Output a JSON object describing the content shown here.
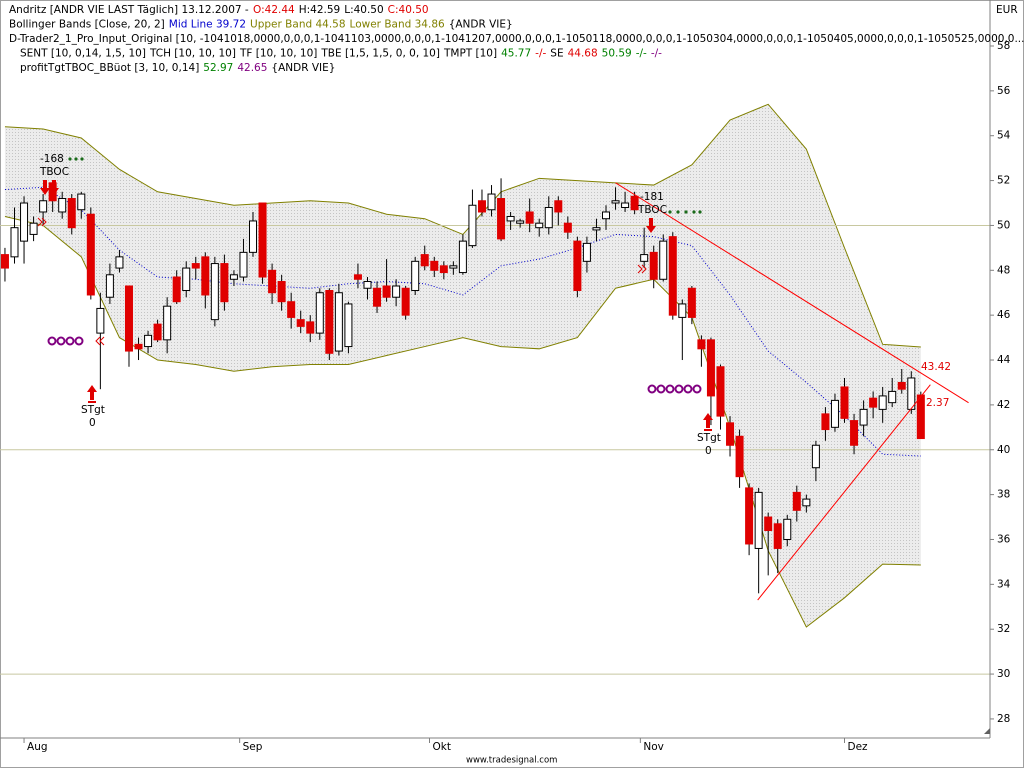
{
  "chart_data": {
    "type": "candlestick",
    "legend_lines": [
      [
        {
          "text": "Andritz [ANDR VIE LAST Täglich] 13.12.2007 -",
          "color": "#000000"
        },
        {
          "text": "O:42.44",
          "color": "#e00000"
        },
        {
          "text": "H:42.59",
          "color": "#000000"
        },
        {
          "text": "L:40.50",
          "color": "#000000"
        },
        {
          "text": "C:40.50",
          "color": "#e00000"
        }
      ],
      [
        {
          "text": "Bollinger Bands [Close, 20, 2]",
          "color": "#000000"
        },
        {
          "text": "Mid Line 39.72",
          "color": "#0000cc"
        },
        {
          "text": "Upper Band 44.58",
          "color": "#808000"
        },
        {
          "text": "Lower Band 34.86",
          "color": "#808000"
        },
        {
          "text": "{ANDR VIE}",
          "color": "#000000"
        }
      ],
      [
        {
          "text": "D-Trader2_1_Pro_Input_Original [10, -1041018,0000,0,0,0,1-1041103,0000,0,0,0,1-1041207,0000,0,0,0,1-1050118,0000,0,0,0,1-1050304,0000,0,0,0,1-1050405,0000,0,0,0,1-1050525,0000,0...",
          "color": "#000000"
        }
      ],
      [
        {
          "text": "SENT [10, 0,14, 1,5, 10]",
          "color": "#000000"
        },
        {
          "text": "TCH [10, 10, 10]",
          "color": "#000000"
        },
        {
          "text": "TF [10, 10, 10]",
          "color": "#000000"
        },
        {
          "text": "TBE [1,5, 1,5, 0, 0, 10]",
          "color": "#000000"
        },
        {
          "text": "TMPT [10]",
          "color": "#000000"
        },
        {
          "text": "45.77",
          "color": "#008000"
        },
        {
          "text": "-/-",
          "color": "#e00000"
        },
        {
          "text": "SE",
          "color": "#000000"
        },
        {
          "text": "44.68",
          "color": "#e00000"
        },
        {
          "text": "50.59",
          "color": "#008000"
        },
        {
          "text": "-/-",
          "color": "#008000"
        },
        {
          "text": "-/-",
          "color": "#800080"
        }
      ],
      [
        {
          "text": "profitTgtTBOC_BBüot [3, 10, 0,14]",
          "color": "#000000"
        },
        {
          "text": "52.97",
          "color": "#008000"
        },
        {
          "text": "42.65",
          "color": "#800080"
        },
        {
          "text": "{ANDR VIE}",
          "color": "#000000"
        }
      ]
    ],
    "open": [
      48.7,
      48.6,
      49.3,
      49.6,
      50.6,
      51.9,
      50.6,
      51.2,
      50.7,
      50.5,
      45.2,
      46.8,
      48.1,
      47.3,
      44.7,
      44.6,
      45.6,
      44.9,
      47.7,
      47.1,
      48.3,
      48.6,
      45.8,
      48.3,
      47.6,
      47.7,
      48.8,
      51,
      48,
      47.5,
      46.6,
      45.8,
      45.7,
      45.2,
      47.1,
      44.4,
      44.6,
      47.8,
      47.2,
      47.2,
      47.3,
      46.8,
      47.2,
      47.1,
      48.7,
      48.4,
      48.2,
      48.1,
      47.9,
      49.1,
      51.1,
      50.7,
      51.2,
      50.2,
      50.1,
      50.6,
      49.9,
      49.9,
      51.1,
      50.1,
      49.3,
      48.4,
      49.8,
      50.3,
      51,
      50.8,
      51.3,
      48.4,
      48.8,
      47.6,
      49.5,
      45.9,
      47.2,
      44.9,
      44.9,
      43.7,
      41.2,
      40.6,
      38.3,
      35.6,
      37,
      36.7,
      36,
      38.1,
      37.5,
      39.2,
      41.6,
      41,
      42.8,
      41.3,
      41.1,
      42.3,
      41.8,
      42.1,
      43,
      41.8,
      42.44
    ],
    "high": [
      49,
      50.8,
      51.3,
      50.4,
      51.4,
      52,
      51.5,
      51.4,
      51.5,
      50.8,
      47,
      48.3,
      48.9,
      47.3,
      45,
      45.3,
      45.8,
      46.8,
      48,
      48.4,
      48.6,
      48.8,
      48.6,
      48.7,
      48,
      49.4,
      50.6,
      51,
      48.3,
      47.8,
      47,
      46.2,
      46,
      47.2,
      47.2,
      47.4,
      46.6,
      48.3,
      47.7,
      47.5,
      48.5,
      47.6,
      47.3,
      48.6,
      49.1,
      48.6,
      48.4,
      48.4,
      49.6,
      51.6,
      51.6,
      51.8,
      52.1,
      50.6,
      50.3,
      51.2,
      50.3,
      51.3,
      51.3,
      50.4,
      49.5,
      49.5,
      50.3,
      50.9,
      51.7,
      51.5,
      51.5,
      49.9,
      49.1,
      49.6,
      49.7,
      46.7,
      47.3,
      45.1,
      45,
      43.8,
      41.5,
      40.9,
      38.5,
      38.3,
      37.2,
      36.9,
      37.1,
      38.4,
      38,
      40.4,
      41.9,
      42.5,
      43.2,
      41.6,
      42.2,
      42.6,
      42.8,
      43.2,
      43.6,
      43.5,
      42.59
    ],
    "low": [
      47.5,
      48.3,
      48.3,
      49.3,
      50,
      50.6,
      50.3,
      49.6,
      50.3,
      46.7,
      42.7,
      46.5,
      47.9,
      43.7,
      44,
      44.3,
      44.8,
      44.3,
      46.5,
      46.8,
      47.6,
      46.3,
      45.5,
      46.2,
      47.3,
      47.5,
      48.6,
      47.4,
      46.5,
      46.2,
      45.4,
      45.2,
      44.8,
      44.9,
      44,
      44.2,
      44.3,
      47.2,
      46.7,
      46.1,
      46.6,
      46.4,
      45.8,
      46.9,
      48,
      47.7,
      47.6,
      47.8,
      47.8,
      49,
      50.4,
      50.4,
      49.3,
      49.8,
      49.9,
      49.7,
      49.5,
      49.6,
      50,
      49.4,
      46.8,
      47.9,
      49.3,
      49.8,
      50.7,
      50.6,
      50.5,
      48.1,
      47.2,
      47.5,
      45.8,
      44,
      45.6,
      43.7,
      41.1,
      40.9,
      39.7,
      38.3,
      35.3,
      33.6,
      34.4,
      34.5,
      35.7,
      36.8,
      37.2,
      38.6,
      40.4,
      40.8,
      41.2,
      39.8,
      40.6,
      41.4,
      41.2,
      41.9,
      42.5,
      41.6,
      40.5
    ],
    "close": [
      48.1,
      49.9,
      51,
      50.1,
      51.1,
      51.1,
      51.2,
      49.9,
      51.4,
      46.9,
      46.3,
      47.8,
      48.6,
      44.4,
      44.5,
      45.1,
      44.9,
      46.4,
      46.6,
      48.1,
      48.1,
      46.9,
      48.3,
      46.6,
      47.8,
      48.8,
      50.2,
      47.7,
      47,
      46.6,
      45.9,
      45.5,
      45.2,
      47,
      44.3,
      47,
      46.5,
      47.6,
      47.5,
      46.4,
      46.8,
      47.3,
      46,
      48.4,
      48.2,
      48,
      47.9,
      48.2,
      49.3,
      50.9,
      50.6,
      51.4,
      49.4,
      50.4,
      50.2,
      50.1,
      50.1,
      50.8,
      50.6,
      49.7,
      47.1,
      49.2,
      49.9,
      50.6,
      51.1,
      51,
      50.7,
      48.7,
      47.6,
      49.3,
      46,
      46.5,
      45.9,
      44.5,
      42.4,
      41.5,
      40.2,
      38.8,
      35.8,
      38.1,
      36.4,
      35.6,
      36.9,
      37.3,
      37.8,
      40.2,
      40.9,
      42.2,
      41.4,
      40.2,
      41.8,
      41.9,
      42.4,
      42.6,
      42.7,
      43.2,
      40.5
    ],
    "up_color": "#ffffff",
    "down_color": "#e00000",
    "bands": [
      {
        "color": "#808000",
        "x": [
          0,
          4,
          8,
          12,
          16,
          20,
          24,
          28,
          32,
          36,
          40,
          44,
          48,
          52,
          56,
          60,
          64,
          68,
          72,
          76,
          80,
          84,
          88,
          92,
          96
        ],
        "values": [
          54.4,
          54.3,
          53.9,
          52.5,
          51.5,
          51.2,
          50.9,
          51.0,
          51.1,
          51.0,
          50.5,
          50.3,
          49.6,
          51.5,
          52.1,
          52.0,
          51.9,
          51.8,
          52.7,
          54.7,
          55.4,
          53.4,
          49.0,
          44.7,
          44.58
        ]
      },
      {
        "color": "#0000cc",
        "x": [
          0,
          4,
          8,
          12,
          16,
          20,
          24,
          28,
          32,
          36,
          40,
          44,
          48,
          52,
          56,
          60,
          64,
          68,
          72,
          76,
          80,
          84,
          88,
          92,
          96
        ],
        "values": [
          51.6,
          51.7,
          50.7,
          48.9,
          47.7,
          47.6,
          47.4,
          47.3,
          47.2,
          47.4,
          47.5,
          47.4,
          46.9,
          48.2,
          48.5,
          49.0,
          49.6,
          49.5,
          49.1,
          46.9,
          44.4,
          43.0,
          41.5,
          39.8,
          39.72
        ]
      },
      {
        "color": "#808000",
        "x": [
          0,
          4,
          8,
          12,
          16,
          20,
          24,
          28,
          32,
          36,
          40,
          44,
          48,
          52,
          56,
          60,
          64,
          68,
          72,
          76,
          80,
          84,
          88,
          92,
          96
        ],
        "values": [
          50.4,
          50.0,
          48.6,
          45.0,
          44.0,
          43.8,
          43.5,
          43.7,
          43.8,
          43.8,
          44.2,
          44.6,
          45.0,
          44.6,
          44.5,
          45.0,
          47.2,
          47.6,
          45.9,
          41.0,
          35.5,
          32.1,
          33.4,
          34.9,
          34.86
        ]
      }
    ],
    "trendlines": [
      {
        "color": "#ff0000",
        "x": [
          64,
          101
        ],
        "values": [
          51.9,
          42.1
        ]
      },
      {
        "color": "#ff0000",
        "x": [
          78.9,
          97
        ],
        "values": [
          33.3,
          42.9
        ]
      }
    ],
    "annotations": [
      "-168",
      "TBOC",
      "STgt",
      "0",
      "-181",
      "TBOC",
      "STgt",
      "0",
      "43.42",
      "2.37",
      "EUR",
      "www.tradesignal.com"
    ],
    "xlim": [
      -0.52,
      103.25
    ],
    "xticks": [
      {
        "value": 2,
        "label": "Aug"
      },
      {
        "value": 24.6,
        "label": "Sep"
      },
      {
        "value": 44.5,
        "label": "Okt"
      },
      {
        "value": 66.6,
        "label": "Nov"
      },
      {
        "value": 88,
        "label": "Dez"
      }
    ],
    "ylim": [
      27.15,
      60.05
    ],
    "yticks": [
      28,
      30,
      32,
      34,
      36,
      38,
      40,
      42,
      44,
      46,
      48,
      50,
      52,
      54,
      56,
      58
    ],
    "grid_y": [
      30,
      40,
      50
    ]
  }
}
